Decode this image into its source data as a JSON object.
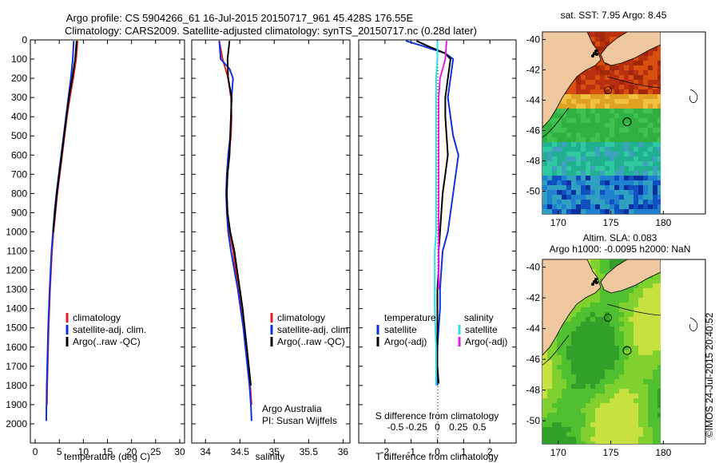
{
  "header": {
    "title_line1": "Argo profile: CS 5904266_61 16-Jul-2015 20150717_961 45.428S 176.55E",
    "title_line2": "Climatology: CARS2009. Satellite-adjusted climatology: synTS_20150717.nc (0.28d later)"
  },
  "colors": {
    "climatology": "#e02020",
    "satellite_adj": "#1030d8",
    "argo": "#000000",
    "sal_satellite": "#30e0e0",
    "sal_argo": "#e020e0",
    "land": "#f0c8a0"
  },
  "watermark": "©IMOS 24-Jul-2015 20:40:52",
  "chart_data": [
    {
      "type": "line",
      "name": "temperature-profile",
      "xlabel": "temperature (deg C)",
      "ylabel": "",
      "xlim": [
        -1,
        31
      ],
      "ylim": [
        2100,
        0
      ],
      "xticks": [
        0,
        5,
        10,
        15,
        20,
        25,
        30
      ],
      "yticks": [
        0,
        100,
        200,
        300,
        400,
        500,
        600,
        700,
        800,
        900,
        1000,
        1100,
        1200,
        1300,
        1400,
        1500,
        1600,
        1700,
        1800,
        1900,
        2000
      ],
      "legend": [
        "climatology",
        "satellite-adj. clim.",
        "Argo(..raw -QC)"
      ],
      "series": [
        {
          "name": "climatology",
          "color": "climatology",
          "points": [
            [
              8.8,
              5
            ],
            [
              8.5,
              100
            ],
            [
              7.9,
              200
            ],
            [
              7.2,
              300
            ],
            [
              6.6,
              400
            ],
            [
              6.1,
              500
            ],
            [
              5.6,
              600
            ],
            [
              5.1,
              700
            ],
            [
              4.6,
              800
            ],
            [
              4.2,
              900
            ],
            [
              3.8,
              1000
            ],
            [
              3.5,
              1100
            ],
            [
              3.3,
              1200
            ],
            [
              3.1,
              1300
            ],
            [
              2.95,
              1400
            ],
            [
              2.8,
              1500
            ],
            [
              2.7,
              1600
            ],
            [
              2.6,
              1700
            ],
            [
              2.5,
              1800
            ],
            [
              2.45,
              1900
            ]
          ]
        },
        {
          "name": "satellite-adj. clim.",
          "color": "satellite_adj",
          "points": [
            [
              8.0,
              5
            ],
            [
              7.8,
              100
            ],
            [
              7.4,
              200
            ],
            [
              6.9,
              300
            ],
            [
              6.4,
              400
            ],
            [
              5.9,
              500
            ],
            [
              5.4,
              600
            ],
            [
              4.9,
              700
            ],
            [
              4.4,
              800
            ],
            [
              4.0,
              900
            ],
            [
              3.7,
              1000
            ],
            [
              3.4,
              1100
            ],
            [
              3.2,
              1200
            ],
            [
              3.0,
              1300
            ],
            [
              2.85,
              1400
            ],
            [
              2.7,
              1500
            ],
            [
              2.6,
              1600
            ],
            [
              2.5,
              1700
            ],
            [
              2.4,
              1800
            ],
            [
              2.35,
              1900
            ],
            [
              2.3,
              1985
            ]
          ]
        },
        {
          "name": "Argo(..raw -QC)",
          "color": "argo",
          "points": [
            [
              8.6,
              5
            ],
            [
              8.3,
              100
            ],
            [
              7.7,
              200
            ],
            [
              7.0,
              300
            ],
            [
              6.5,
              400
            ],
            [
              6.0,
              500
            ],
            [
              5.5,
              600
            ],
            [
              5.0,
              700
            ],
            [
              4.5,
              800
            ],
            [
              4.1,
              900
            ],
            [
              3.75,
              1000
            ]
          ]
        }
      ]
    },
    {
      "type": "line",
      "name": "salinity-profile",
      "xlabel": "salinity",
      "ylabel": "",
      "xlim": [
        33.8,
        36.1
      ],
      "ylim": [
        2100,
        0
      ],
      "xticks": [
        34,
        34.5,
        35,
        35.5,
        36
      ],
      "legend": [
        "climatology",
        "satellite-adj. clim.",
        "Argo(..raw -QC)"
      ],
      "annotation": [
        "Argo Australia",
        "PI: Susan Wijffels"
      ],
      "series": [
        {
          "name": "climatology",
          "color": "climatology",
          "points": [
            [
              34.2,
              5
            ],
            [
              34.25,
              100
            ],
            [
              34.33,
              200
            ],
            [
              34.37,
              300
            ],
            [
              34.38,
              400
            ],
            [
              34.37,
              500
            ],
            [
              34.34,
              600
            ],
            [
              34.32,
              700
            ],
            [
              34.31,
              800
            ],
            [
              34.32,
              900
            ],
            [
              34.35,
              1000
            ],
            [
              34.4,
              1100
            ],
            [
              34.44,
              1200
            ],
            [
              34.48,
              1300
            ],
            [
              34.52,
              1400
            ],
            [
              34.56,
              1500
            ],
            [
              34.59,
              1600
            ],
            [
              34.62,
              1700
            ],
            [
              34.65,
              1800
            ],
            [
              34.67,
              1900
            ]
          ]
        },
        {
          "name": "satellite-adj. clim.",
          "color": "satellite_adj",
          "points": [
            [
              34.2,
              5
            ],
            [
              34.22,
              100
            ],
            [
              34.35,
              150
            ],
            [
              34.4,
              200
            ],
            [
              34.38,
              300
            ],
            [
              34.37,
              400
            ],
            [
              34.36,
              500
            ],
            [
              34.33,
              600
            ],
            [
              34.31,
              700
            ],
            [
              34.3,
              800
            ],
            [
              34.31,
              900
            ],
            [
              34.33,
              1000
            ],
            [
              34.37,
              1100
            ],
            [
              34.42,
              1200
            ],
            [
              34.47,
              1300
            ],
            [
              34.51,
              1400
            ],
            [
              34.55,
              1500
            ],
            [
              34.58,
              1600
            ],
            [
              34.61,
              1700
            ],
            [
              34.64,
              1800
            ],
            [
              34.66,
              1900
            ],
            [
              34.67,
              1985
            ]
          ]
        },
        {
          "name": "Argo(..raw -QC)",
          "color": "argo",
          "points": [
            [
              34.35,
              5
            ],
            [
              34.32,
              100
            ],
            [
              34.33,
              200
            ],
            [
              34.38,
              300
            ],
            [
              34.37,
              400
            ],
            [
              34.36,
              500
            ],
            [
              34.35,
              600
            ],
            [
              34.32,
              700
            ],
            [
              34.31,
              800
            ],
            [
              34.32,
              900
            ],
            [
              34.36,
              1000
            ],
            [
              34.42,
              1100
            ],
            [
              34.46,
              1200
            ],
            [
              34.5,
              1300
            ],
            [
              34.54,
              1400
            ],
            [
              34.57,
              1500
            ],
            [
              34.6,
              1600
            ],
            [
              34.63,
              1700
            ],
            [
              34.66,
              1800
            ]
          ]
        }
      ]
    },
    {
      "type": "line",
      "name": "difference-profile",
      "xlabel": "T difference from climatology",
      "xlabel2": "S difference from climatology",
      "xlim": [
        -3,
        3
      ],
      "ylim": [
        2100,
        0
      ],
      "xticks": [
        -2,
        -1,
        0,
        1,
        2
      ],
      "xticks2": [
        -0.5,
        -0.25,
        0,
        0.25,
        0.5
      ],
      "legend": {
        "temperature_title": "temperature",
        "salinity_title": "salinity",
        "items": [
          {
            "label": "satellite",
            "color": "satellite_adj"
          },
          {
            "label": "Argo(-adj)",
            "color": "argo"
          },
          {
            "label": "satellite",
            "color": "sal_satellite"
          },
          {
            "label": "Argo(-adj)",
            "color": "sal_argo"
          }
        ]
      },
      "series": [
        {
          "name": "T satellite",
          "color": "satellite_adj",
          "points": [
            [
              -1.2,
              5
            ],
            [
              -0.6,
              30
            ],
            [
              0.3,
              70
            ],
            [
              0.6,
              100
            ],
            [
              0.5,
              200
            ],
            [
              0.4,
              300
            ],
            [
              0.5,
              400
            ],
            [
              0.6,
              500
            ],
            [
              0.8,
              600
            ],
            [
              0.7,
              700
            ],
            [
              0.6,
              800
            ],
            [
              0.5,
              900
            ],
            [
              0.4,
              1000
            ],
            [
              0.2,
              1100
            ],
            [
              0.15,
              1200
            ],
            [
              0.1,
              1300
            ],
            [
              0.1,
              1400
            ],
            [
              0.05,
              1500
            ],
            [
              0.0,
              1600
            ],
            [
              0.0,
              1700
            ],
            [
              0.0,
              1800
            ]
          ]
        },
        {
          "name": "T Argo(-adj)",
          "color": "argo",
          "points": [
            [
              -0.8,
              5
            ],
            [
              -0.4,
              30
            ],
            [
              0.3,
              70
            ],
            [
              0.5,
              100
            ],
            [
              0.4,
              200
            ],
            [
              0.3,
              300
            ],
            [
              0.3,
              400
            ],
            [
              0.35,
              500
            ],
            [
              0.4,
              600
            ],
            [
              0.3,
              700
            ],
            [
              0.2,
              800
            ],
            [
              0.15,
              900
            ],
            [
              0.1,
              1000
            ],
            [
              0.05,
              1100
            ],
            [
              0.05,
              1200
            ],
            [
              0.0,
              1300
            ],
            [
              0.0,
              1400
            ],
            [
              0.0,
              1500
            ],
            [
              0.0,
              1600
            ],
            [
              0.0,
              1700
            ],
            [
              0.05,
              1790
            ]
          ]
        },
        {
          "name": "S satellite",
          "color": "sal_satellite",
          "points": [
            [
              0.0,
              5
            ],
            [
              0.0,
              100
            ],
            [
              -0.05,
              200
            ],
            [
              -0.05,
              300
            ],
            [
              -0.05,
              400
            ],
            [
              -0.05,
              500
            ],
            [
              -0.05,
              600
            ],
            [
              -0.05,
              700
            ],
            [
              -0.05,
              800
            ],
            [
              -0.05,
              900
            ],
            [
              -0.05,
              1000
            ],
            [
              -0.1,
              1100
            ],
            [
              -0.1,
              1200
            ],
            [
              -0.1,
              1300
            ],
            [
              -0.1,
              1400
            ],
            [
              -0.08,
              1500
            ],
            [
              -0.05,
              1600
            ],
            [
              -0.05,
              1700
            ],
            [
              -0.05,
              1800
            ]
          ]
        },
        {
          "name": "S Argo(-adj)",
          "color": "sal_argo",
          "points": [
            [
              0.35,
              5
            ],
            [
              0.3,
              100
            ],
            [
              0.1,
              200
            ],
            [
              0.05,
              300
            ],
            [
              0.05,
              400
            ],
            [
              0.05,
              500
            ],
            [
              0.05,
              600
            ],
            [
              0.05,
              700
            ],
            [
              0.05,
              800
            ],
            [
              0.05,
              900
            ],
            [
              0.05,
              1000
            ],
            [
              0.05,
              1100
            ],
            [
              0.05,
              1200
            ],
            [
              0.05,
              1300
            ]
          ]
        }
      ]
    },
    {
      "type": "heatmap",
      "name": "sst-map",
      "title": "sat. SST: 7.95  Argo: 8.45",
      "xlim": [
        168.5,
        184
      ],
      "ylim": [
        -51.5,
        -39.5
      ],
      "xticks": [
        170,
        175,
        180
      ],
      "yticks": [
        -40,
        -42,
        -44,
        -46,
        -48,
        -50
      ],
      "marker": [
        176.55,
        -45.43
      ]
    },
    {
      "type": "heatmap",
      "name": "sla-map",
      "title_line1": "Altim. SLA: 0.083",
      "title_line2": "Argo h1000: -0.0095 h2000: NaN",
      "xlim": [
        168.5,
        184
      ],
      "ylim": [
        -51.5,
        -39.5
      ],
      "xticks": [
        170,
        175,
        180
      ],
      "yticks": [
        -40,
        -42,
        -44,
        -46,
        -48,
        -50
      ],
      "marker": [
        176.55,
        -45.43
      ]
    }
  ]
}
